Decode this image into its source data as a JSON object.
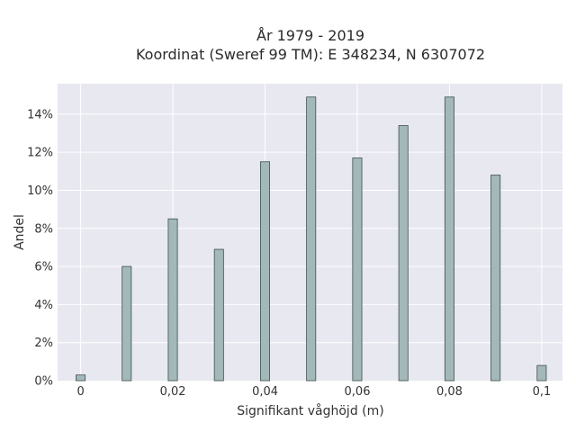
{
  "chart_data": {
    "type": "bar",
    "title_line1": "År 1979 - 2019",
    "title_line2": "Koordinat (Sweref 99 TM): E 348234, N 6307072",
    "xlabel": "Signifikant våghöjd (m)",
    "ylabel": "Andel",
    "x": [
      0,
      0.01,
      0.02,
      0.03,
      0.04,
      0.05,
      0.06,
      0.07,
      0.08,
      0.09,
      0.1
    ],
    "values": [
      0.3,
      6.0,
      8.5,
      6.9,
      11.5,
      14.9,
      11.7,
      13.4,
      14.9,
      10.8,
      0.8
    ],
    "xlim": [
      -0.005,
      0.1045
    ],
    "ylim": [
      0,
      15.6
    ],
    "x_ticks": [
      0,
      0.02,
      0.04,
      0.06,
      0.08,
      0.1
    ],
    "x_tick_labels": [
      "0",
      "0,02",
      "0,04",
      "0,06",
      "0,08",
      "0,1"
    ],
    "y_ticks": [
      0,
      2,
      4,
      6,
      8,
      10,
      12,
      14
    ],
    "y_tick_labels": [
      "0%",
      "2%",
      "4%",
      "6%",
      "8%",
      "10%",
      "12%",
      "14%"
    ],
    "grid": true,
    "colors": {
      "bar": "#a2b8b9",
      "bar_edge": "#3d4f4f",
      "plot_bg": "#e8e8f1",
      "grid": "#ffffff"
    }
  }
}
